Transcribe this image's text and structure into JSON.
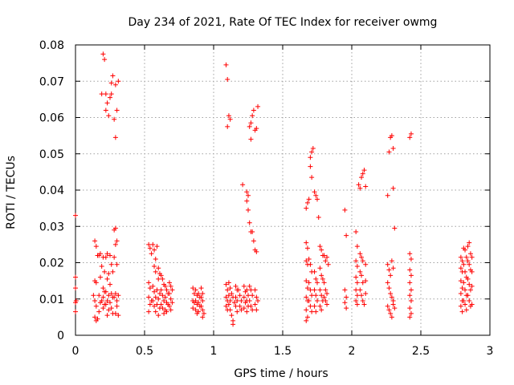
{
  "chart_data": {
    "type": "scatter",
    "title": "Day 234 of 2021, Rate Of TEC Index for receiver owmg",
    "xlabel": "GPS time / hours",
    "ylabel": "ROTI / TECUs",
    "xlim": [
      0,
      3
    ],
    "ylim": [
      0,
      0.08
    ],
    "x_ticks": [
      0,
      0.5,
      1,
      1.5,
      2,
      2.5,
      3
    ],
    "x_tick_labels": [
      "0",
      "0.5",
      "1",
      "1.5",
      "2",
      "2.5",
      "3"
    ],
    "y_ticks": [
      0,
      0.01,
      0.02,
      0.03,
      0.04,
      0.05,
      0.06,
      0.07,
      0.08
    ],
    "y_tick_labels": [
      "0",
      "0.01",
      "0.02",
      "0.03",
      "0.04",
      "0.05",
      "0.06",
      "0.07",
      "0.08"
    ],
    "grid": true,
    "marker": "plus",
    "color": "#ff0000",
    "points": [
      [
        0.0,
        0.033
      ],
      [
        0.0,
        0.016
      ],
      [
        0.0,
        0.013
      ],
      [
        0.0,
        0.009
      ],
      [
        0.0,
        0.0065
      ],
      [
        0.005,
        0.0095
      ],
      [
        0.14,
        0.026
      ],
      [
        0.15,
        0.0245
      ],
      [
        0.16,
        0.022
      ],
      [
        0.14,
        0.015
      ],
      [
        0.15,
        0.0145
      ],
      [
        0.13,
        0.011
      ],
      [
        0.14,
        0.0095
      ],
      [
        0.15,
        0.008
      ],
      [
        0.14,
        0.005
      ],
      [
        0.15,
        0.004
      ],
      [
        0.16,
        0.0045
      ],
      [
        0.17,
        0.022
      ],
      [
        0.18,
        0.0225
      ],
      [
        0.18,
        0.016
      ],
      [
        0.17,
        0.011
      ],
      [
        0.18,
        0.009
      ],
      [
        0.17,
        0.0065
      ],
      [
        0.19,
        0.0665
      ],
      [
        0.2,
        0.0775
      ],
      [
        0.21,
        0.076
      ],
      [
        0.2,
        0.0215
      ],
      [
        0.19,
        0.019
      ],
      [
        0.21,
        0.0175
      ],
      [
        0.2,
        0.013
      ],
      [
        0.21,
        0.012
      ],
      [
        0.2,
        0.0105
      ],
      [
        0.19,
        0.0095
      ],
      [
        0.21,
        0.0085
      ],
      [
        0.2,
        0.0075
      ],
      [
        0.22,
        0.0665
      ],
      [
        0.23,
        0.064
      ],
      [
        0.22,
        0.062
      ],
      [
        0.24,
        0.0605
      ],
      [
        0.23,
        0.0225
      ],
      [
        0.22,
        0.0215
      ],
      [
        0.24,
        0.017
      ],
      [
        0.23,
        0.0155
      ],
      [
        0.22,
        0.012
      ],
      [
        0.24,
        0.011
      ],
      [
        0.23,
        0.0095
      ],
      [
        0.22,
        0.0085
      ],
      [
        0.24,
        0.007
      ],
      [
        0.23,
        0.0055
      ],
      [
        0.25,
        0.0655
      ],
      [
        0.26,
        0.0665
      ],
      [
        0.27,
        0.0715
      ],
      [
        0.26,
        0.0695
      ],
      [
        0.25,
        0.022
      ],
      [
        0.26,
        0.0195
      ],
      [
        0.27,
        0.0175
      ],
      [
        0.25,
        0.014
      ],
      [
        0.26,
        0.0115
      ],
      [
        0.27,
        0.0105
      ],
      [
        0.25,
        0.009
      ],
      [
        0.26,
        0.0075
      ],
      [
        0.27,
        0.006
      ],
      [
        0.28,
        0.0595
      ],
      [
        0.29,
        0.0545
      ],
      [
        0.29,
        0.069
      ],
      [
        0.3,
        0.062
      ],
      [
        0.31,
        0.07
      ],
      [
        0.28,
        0.029
      ],
      [
        0.29,
        0.0295
      ],
      [
        0.3,
        0.026
      ],
      [
        0.29,
        0.025
      ],
      [
        0.28,
        0.0215
      ],
      [
        0.3,
        0.0195
      ],
      [
        0.29,
        0.0115
      ],
      [
        0.28,
        0.0105
      ],
      [
        0.3,
        0.0095
      ],
      [
        0.31,
        0.011
      ],
      [
        0.3,
        0.008
      ],
      [
        0.29,
        0.006
      ],
      [
        0.31,
        0.0055
      ],
      [
        0.53,
        0.025
      ],
      [
        0.54,
        0.024
      ],
      [
        0.55,
        0.0225
      ],
      [
        0.53,
        0.0145
      ],
      [
        0.54,
        0.013
      ],
      [
        0.53,
        0.0105
      ],
      [
        0.55,
        0.0095
      ],
      [
        0.54,
        0.0085
      ],
      [
        0.53,
        0.0065
      ],
      [
        0.56,
        0.025
      ],
      [
        0.57,
        0.0235
      ],
      [
        0.58,
        0.021
      ],
      [
        0.57,
        0.019
      ],
      [
        0.58,
        0.0175
      ],
      [
        0.56,
        0.0135
      ],
      [
        0.57,
        0.012
      ],
      [
        0.58,
        0.0105
      ],
      [
        0.56,
        0.0095
      ],
      [
        0.57,
        0.008
      ],
      [
        0.58,
        0.0065
      ],
      [
        0.59,
        0.0245
      ],
      [
        0.6,
        0.0185
      ],
      [
        0.61,
        0.017
      ],
      [
        0.6,
        0.0155
      ],
      [
        0.59,
        0.0125
      ],
      [
        0.61,
        0.0115
      ],
      [
        0.6,
        0.01
      ],
      [
        0.59,
        0.0085
      ],
      [
        0.61,
        0.0075
      ],
      [
        0.6,
        0.0055
      ],
      [
        0.62,
        0.0165
      ],
      [
        0.63,
        0.0155
      ],
      [
        0.64,
        0.014
      ],
      [
        0.62,
        0.0125
      ],
      [
        0.63,
        0.011
      ],
      [
        0.64,
        0.0095
      ],
      [
        0.62,
        0.0085
      ],
      [
        0.63,
        0.0075
      ],
      [
        0.64,
        0.006
      ],
      [
        0.65,
        0.0135
      ],
      [
        0.66,
        0.0125
      ],
      [
        0.67,
        0.0115
      ],
      [
        0.65,
        0.0105
      ],
      [
        0.66,
        0.009
      ],
      [
        0.67,
        0.0085
      ],
      [
        0.65,
        0.007
      ],
      [
        0.66,
        0.0065
      ],
      [
        0.68,
        0.0145
      ],
      [
        0.69,
        0.0135
      ],
      [
        0.7,
        0.0125
      ],
      [
        0.68,
        0.0115
      ],
      [
        0.69,
        0.01
      ],
      [
        0.7,
        0.009
      ],
      [
        0.68,
        0.008
      ],
      [
        0.69,
        0.007
      ],
      [
        0.85,
        0.013
      ],
      [
        0.86,
        0.0115
      ],
      [
        0.85,
        0.0095
      ],
      [
        0.86,
        0.009
      ],
      [
        0.85,
        0.0075
      ],
      [
        0.87,
        0.0125
      ],
      [
        0.88,
        0.011
      ],
      [
        0.87,
        0.0095
      ],
      [
        0.88,
        0.0085
      ],
      [
        0.87,
        0.007
      ],
      [
        0.88,
        0.006
      ],
      [
        0.89,
        0.0115
      ],
      [
        0.9,
        0.0105
      ],
      [
        0.89,
        0.009
      ],
      [
        0.9,
        0.008
      ],
      [
        0.89,
        0.0065
      ],
      [
        0.91,
        0.013
      ],
      [
        0.92,
        0.0115
      ],
      [
        0.91,
        0.0105
      ],
      [
        0.92,
        0.0095
      ],
      [
        0.91,
        0.008
      ],
      [
        0.92,
        0.007
      ],
      [
        0.93,
        0.006
      ],
      [
        0.92,
        0.005
      ],
      [
        1.09,
        0.0745
      ],
      [
        1.1,
        0.0705
      ],
      [
        1.1,
        0.0575
      ],
      [
        1.11,
        0.0605
      ],
      [
        1.12,
        0.0595
      ],
      [
        1.09,
        0.014
      ],
      [
        1.1,
        0.0125
      ],
      [
        1.09,
        0.0105
      ],
      [
        1.1,
        0.0095
      ],
      [
        1.09,
        0.008
      ],
      [
        1.1,
        0.007
      ],
      [
        1.11,
        0.0145
      ],
      [
        1.12,
        0.013
      ],
      [
        1.11,
        0.011
      ],
      [
        1.12,
        0.0095
      ],
      [
        1.11,
        0.0085
      ],
      [
        1.12,
        0.007
      ],
      [
        1.13,
        0.0055
      ],
      [
        1.14,
        0.004
      ],
      [
        1.14,
        0.003
      ],
      [
        1.13,
        0.0115
      ],
      [
        1.14,
        0.0105
      ],
      [
        1.15,
        0.009
      ],
      [
        1.16,
        0.0135
      ],
      [
        1.17,
        0.0125
      ],
      [
        1.16,
        0.0105
      ],
      [
        1.17,
        0.0095
      ],
      [
        1.16,
        0.008
      ],
      [
        1.17,
        0.0065
      ],
      [
        1.18,
        0.0125
      ],
      [
        1.19,
        0.011
      ],
      [
        1.2,
        0.0095
      ],
      [
        1.19,
        0.008
      ],
      [
        1.2,
        0.007
      ],
      [
        1.21,
        0.0415
      ],
      [
        1.22,
        0.0135
      ],
      [
        1.23,
        0.012
      ],
      [
        1.22,
        0.0105
      ],
      [
        1.23,
        0.009
      ],
      [
        1.22,
        0.0075
      ],
      [
        1.24,
        0.0395
      ],
      [
        1.25,
        0.0385
      ],
      [
        1.24,
        0.037
      ],
      [
        1.25,
        0.0345
      ],
      [
        1.24,
        0.0125
      ],
      [
        1.25,
        0.011
      ],
      [
        1.24,
        0.0095
      ],
      [
        1.25,
        0.008
      ],
      [
        1.24,
        0.0065
      ],
      [
        1.26,
        0.0575
      ],
      [
        1.27,
        0.0585
      ],
      [
        1.28,
        0.0605
      ],
      [
        1.29,
        0.062
      ],
      [
        1.27,
        0.054
      ],
      [
        1.26,
        0.031
      ],
      [
        1.27,
        0.0285
      ],
      [
        1.28,
        0.0285
      ],
      [
        1.29,
        0.026
      ],
      [
        1.26,
        0.0135
      ],
      [
        1.27,
        0.0125
      ],
      [
        1.28,
        0.011
      ],
      [
        1.26,
        0.0095
      ],
      [
        1.27,
        0.008
      ],
      [
        1.28,
        0.007
      ],
      [
        1.3,
        0.0565
      ],
      [
        1.31,
        0.057
      ],
      [
        1.32,
        0.063
      ],
      [
        1.3,
        0.0235
      ],
      [
        1.31,
        0.023
      ],
      [
        1.3,
        0.0125
      ],
      [
        1.31,
        0.0105
      ],
      [
        1.32,
        0.0095
      ],
      [
        1.3,
        0.0085
      ],
      [
        1.31,
        0.007
      ],
      [
        1.67,
        0.035
      ],
      [
        1.68,
        0.0365
      ],
      [
        1.67,
        0.0255
      ],
      [
        1.68,
        0.024
      ],
      [
        1.67,
        0.0205
      ],
      [
        1.68,
        0.0195
      ],
      [
        1.67,
        0.015
      ],
      [
        1.68,
        0.013
      ],
      [
        1.67,
        0.0105
      ],
      [
        1.68,
        0.0095
      ],
      [
        1.67,
        0.007
      ],
      [
        1.68,
        0.005
      ],
      [
        1.67,
        0.004
      ],
      [
        1.69,
        0.0375
      ],
      [
        1.7,
        0.0465
      ],
      [
        1.71,
        0.0505
      ],
      [
        1.72,
        0.0515
      ],
      [
        1.7,
        0.049
      ],
      [
        1.71,
        0.0435
      ],
      [
        1.69,
        0.021
      ],
      [
        1.7,
        0.0195
      ],
      [
        1.71,
        0.0175
      ],
      [
        1.69,
        0.0145
      ],
      [
        1.7,
        0.0125
      ],
      [
        1.71,
        0.011
      ],
      [
        1.69,
        0.0095
      ],
      [
        1.7,
        0.008
      ],
      [
        1.71,
        0.0065
      ],
      [
        1.73,
        0.0395
      ],
      [
        1.74,
        0.0385
      ],
      [
        1.75,
        0.0375
      ],
      [
        1.76,
        0.0325
      ],
      [
        1.73,
        0.0175
      ],
      [
        1.74,
        0.0155
      ],
      [
        1.75,
        0.0145
      ],
      [
        1.73,
        0.0125
      ],
      [
        1.74,
        0.011
      ],
      [
        1.75,
        0.0095
      ],
      [
        1.73,
        0.008
      ],
      [
        1.74,
        0.0065
      ],
      [
        1.77,
        0.0245
      ],
      [
        1.78,
        0.0235
      ],
      [
        1.79,
        0.022
      ],
      [
        1.77,
        0.0185
      ],
      [
        1.78,
        0.0165
      ],
      [
        1.79,
        0.0155
      ],
      [
        1.77,
        0.0125
      ],
      [
        1.78,
        0.011
      ],
      [
        1.79,
        0.0095
      ],
      [
        1.77,
        0.008
      ],
      [
        1.78,
        0.007
      ],
      [
        1.8,
        0.022
      ],
      [
        1.81,
        0.0205
      ],
      [
        1.82,
        0.0215
      ],
      [
        1.83,
        0.0195
      ],
      [
        1.8,
        0.0145
      ],
      [
        1.81,
        0.0125
      ],
      [
        1.82,
        0.0115
      ],
      [
        1.8,
        0.0105
      ],
      [
        1.81,
        0.0095
      ],
      [
        1.82,
        0.0085
      ],
      [
        1.95,
        0.0345
      ],
      [
        1.96,
        0.0275
      ],
      [
        1.95,
        0.0125
      ],
      [
        1.96,
        0.0105
      ],
      [
        1.95,
        0.009
      ],
      [
        1.96,
        0.0075
      ],
      [
        2.03,
        0.0285
      ],
      [
        2.04,
        0.0245
      ],
      [
        2.03,
        0.0205
      ],
      [
        2.04,
        0.019
      ],
      [
        2.03,
        0.016
      ],
      [
        2.04,
        0.0145
      ],
      [
        2.03,
        0.0125
      ],
      [
        2.04,
        0.011
      ],
      [
        2.03,
        0.0095
      ],
      [
        2.04,
        0.0085
      ],
      [
        2.05,
        0.0415
      ],
      [
        2.06,
        0.0405
      ],
      [
        2.07,
        0.0435
      ],
      [
        2.08,
        0.0445
      ],
      [
        2.09,
        0.0455
      ],
      [
        2.06,
        0.0225
      ],
      [
        2.07,
        0.0215
      ],
      [
        2.08,
        0.0205
      ],
      [
        2.06,
        0.0175
      ],
      [
        2.07,
        0.0165
      ],
      [
        2.08,
        0.0145
      ],
      [
        2.06,
        0.0125
      ],
      [
        2.07,
        0.011
      ],
      [
        2.08,
        0.0095
      ],
      [
        2.09,
        0.0085
      ],
      [
        2.1,
        0.041
      ],
      [
        2.1,
        0.0195
      ],
      [
        2.1,
        0.015
      ],
      [
        2.1,
        0.0115
      ],
      [
        2.26,
        0.0385
      ],
      [
        2.27,
        0.0505
      ],
      [
        2.28,
        0.0545
      ],
      [
        2.29,
        0.055
      ],
      [
        2.3,
        0.0515
      ],
      [
        2.3,
        0.0405
      ],
      [
        2.31,
        0.0295
      ],
      [
        2.26,
        0.0195
      ],
      [
        2.27,
        0.018
      ],
      [
        2.28,
        0.0165
      ],
      [
        2.29,
        0.0205
      ],
      [
        2.3,
        0.0185
      ],
      [
        2.26,
        0.0145
      ],
      [
        2.27,
        0.013
      ],
      [
        2.28,
        0.0115
      ],
      [
        2.29,
        0.0105
      ],
      [
        2.3,
        0.0095
      ],
      [
        2.26,
        0.008
      ],
      [
        2.27,
        0.007
      ],
      [
        2.28,
        0.006
      ],
      [
        2.29,
        0.005
      ],
      [
        2.3,
        0.0085
      ],
      [
        2.31,
        0.0075
      ],
      [
        2.42,
        0.0545
      ],
      [
        2.43,
        0.0555
      ],
      [
        2.42,
        0.0225
      ],
      [
        2.43,
        0.021
      ],
      [
        2.42,
        0.018
      ],
      [
        2.43,
        0.0165
      ],
      [
        2.42,
        0.0145
      ],
      [
        2.43,
        0.0125
      ],
      [
        2.42,
        0.011
      ],
      [
        2.43,
        0.0095
      ],
      [
        2.42,
        0.0075
      ],
      [
        2.43,
        0.006
      ],
      [
        2.42,
        0.005
      ],
      [
        2.79,
        0.0215
      ],
      [
        2.8,
        0.0205
      ],
      [
        2.79,
        0.0185
      ],
      [
        2.8,
        0.0175
      ],
      [
        2.79,
        0.015
      ],
      [
        2.8,
        0.013
      ],
      [
        2.79,
        0.0115
      ],
      [
        2.8,
        0.0095
      ],
      [
        2.79,
        0.008
      ],
      [
        2.8,
        0.0065
      ],
      [
        2.81,
        0.024
      ],
      [
        2.82,
        0.0235
      ],
      [
        2.83,
        0.0215
      ],
      [
        2.81,
        0.0195
      ],
      [
        2.82,
        0.0175
      ],
      [
        2.83,
        0.016
      ],
      [
        2.81,
        0.0145
      ],
      [
        2.82,
        0.0125
      ],
      [
        2.83,
        0.011
      ],
      [
        2.81,
        0.0095
      ],
      [
        2.82,
        0.0085
      ],
      [
        2.83,
        0.007
      ],
      [
        2.84,
        0.0245
      ],
      [
        2.85,
        0.0255
      ],
      [
        2.86,
        0.0225
      ],
      [
        2.84,
        0.0205
      ],
      [
        2.85,
        0.0195
      ],
      [
        2.86,
        0.018
      ],
      [
        2.84,
        0.0155
      ],
      [
        2.85,
        0.014
      ],
      [
        2.86,
        0.0125
      ],
      [
        2.84,
        0.011
      ],
      [
        2.85,
        0.0095
      ],
      [
        2.86,
        0.008
      ],
      [
        2.87,
        0.0215
      ],
      [
        2.87,
        0.0175
      ],
      [
        2.87,
        0.0135
      ],
      [
        2.87,
        0.0085
      ]
    ]
  }
}
